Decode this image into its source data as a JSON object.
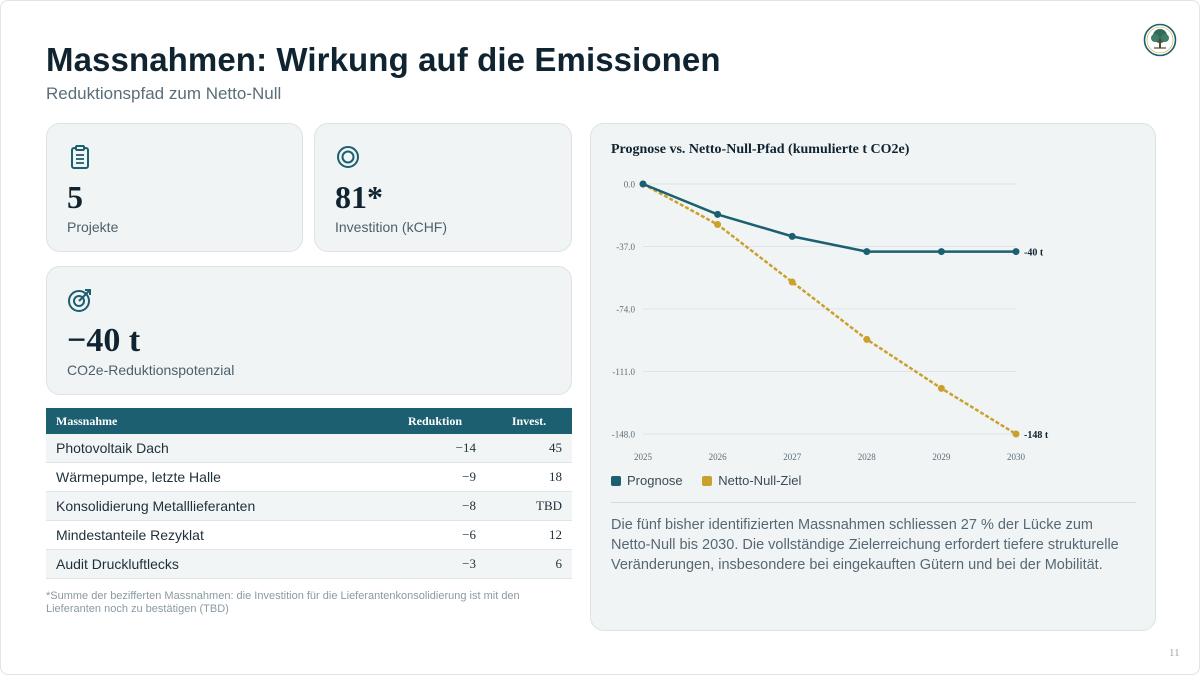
{
  "slide": {
    "title": "Massnahmen: Wirkung auf die Emissionen",
    "subtitle": "Reduktionspfad zum Netto-Null",
    "page_number": "11",
    "colors": {
      "accent": "#1b5f70",
      "gold": "#c9a12c",
      "card_bg": "#f1f4f5"
    }
  },
  "kpis": {
    "projects": {
      "icon": "clipboard-icon",
      "value": "5",
      "label": "Projekte"
    },
    "investment": {
      "icon": "target-rings-icon",
      "value": "81*",
      "label": "Investition (kCHF)"
    },
    "reduction": {
      "icon": "target-arrow-icon",
      "value": "−40 t",
      "label": "CO2e-Reduktionspotenzial"
    }
  },
  "table": {
    "headers": [
      "Massnahme",
      "Reduktion",
      "Invest."
    ],
    "rows": [
      {
        "name": "Photovoltaik Dach",
        "reduction": "−14",
        "invest": "45"
      },
      {
        "name": "Wärmepumpe, letzte Halle",
        "reduction": "−9",
        "invest": "18"
      },
      {
        "name": "Konsolidierung Metalllieferanten",
        "reduction": "−8",
        "invest": "TBD"
      },
      {
        "name": "Mindestanteile Rezyklat",
        "reduction": "−6",
        "invest": "12"
      },
      {
        "name": "Audit Druckluftlecks",
        "reduction": "−3",
        "invest": "6"
      }
    ],
    "footnote": "*Summe der bezifferten Massnahmen: die Investition für die Lieferantenkonsolidierung ist mit den Lieferanten noch zu bestätigen (TBD)"
  },
  "chart_data": {
    "type": "line",
    "title": "Prognose vs. Netto-Null-Pfad (kumulierte t CO2e)",
    "x": [
      "2025",
      "2026",
      "2027",
      "2028",
      "2029",
      "2030"
    ],
    "y_ticks": [
      "0.0",
      "-37.0",
      "-74.0",
      "-111.0",
      "-148.0"
    ],
    "ylim": [
      -148,
      0
    ],
    "grid": true,
    "legend": "bottom-left",
    "series": [
      {
        "name": "Prognose",
        "color": "#1b5f70",
        "dashed": false,
        "values": [
          0,
          -18,
          -31,
          -40,
          -40,
          -40
        ],
        "end_label": "-40 t"
      },
      {
        "name": "Netto-Null-Ziel",
        "color": "#c9a12c",
        "dashed": true,
        "values": [
          0,
          -24,
          -58,
          -92,
          -121,
          -148
        ],
        "end_label": "-148 t"
      }
    ]
  },
  "note": "Die fünf bisher identifizierten Massnahmen schliessen 27 % der Lücke zum Netto-Null bis 2030. Die vollständige Zielerreichung erfordert tiefere strukturelle Veränderungen, insbesondere bei eingekauften Gütern und bei der Mobilität."
}
